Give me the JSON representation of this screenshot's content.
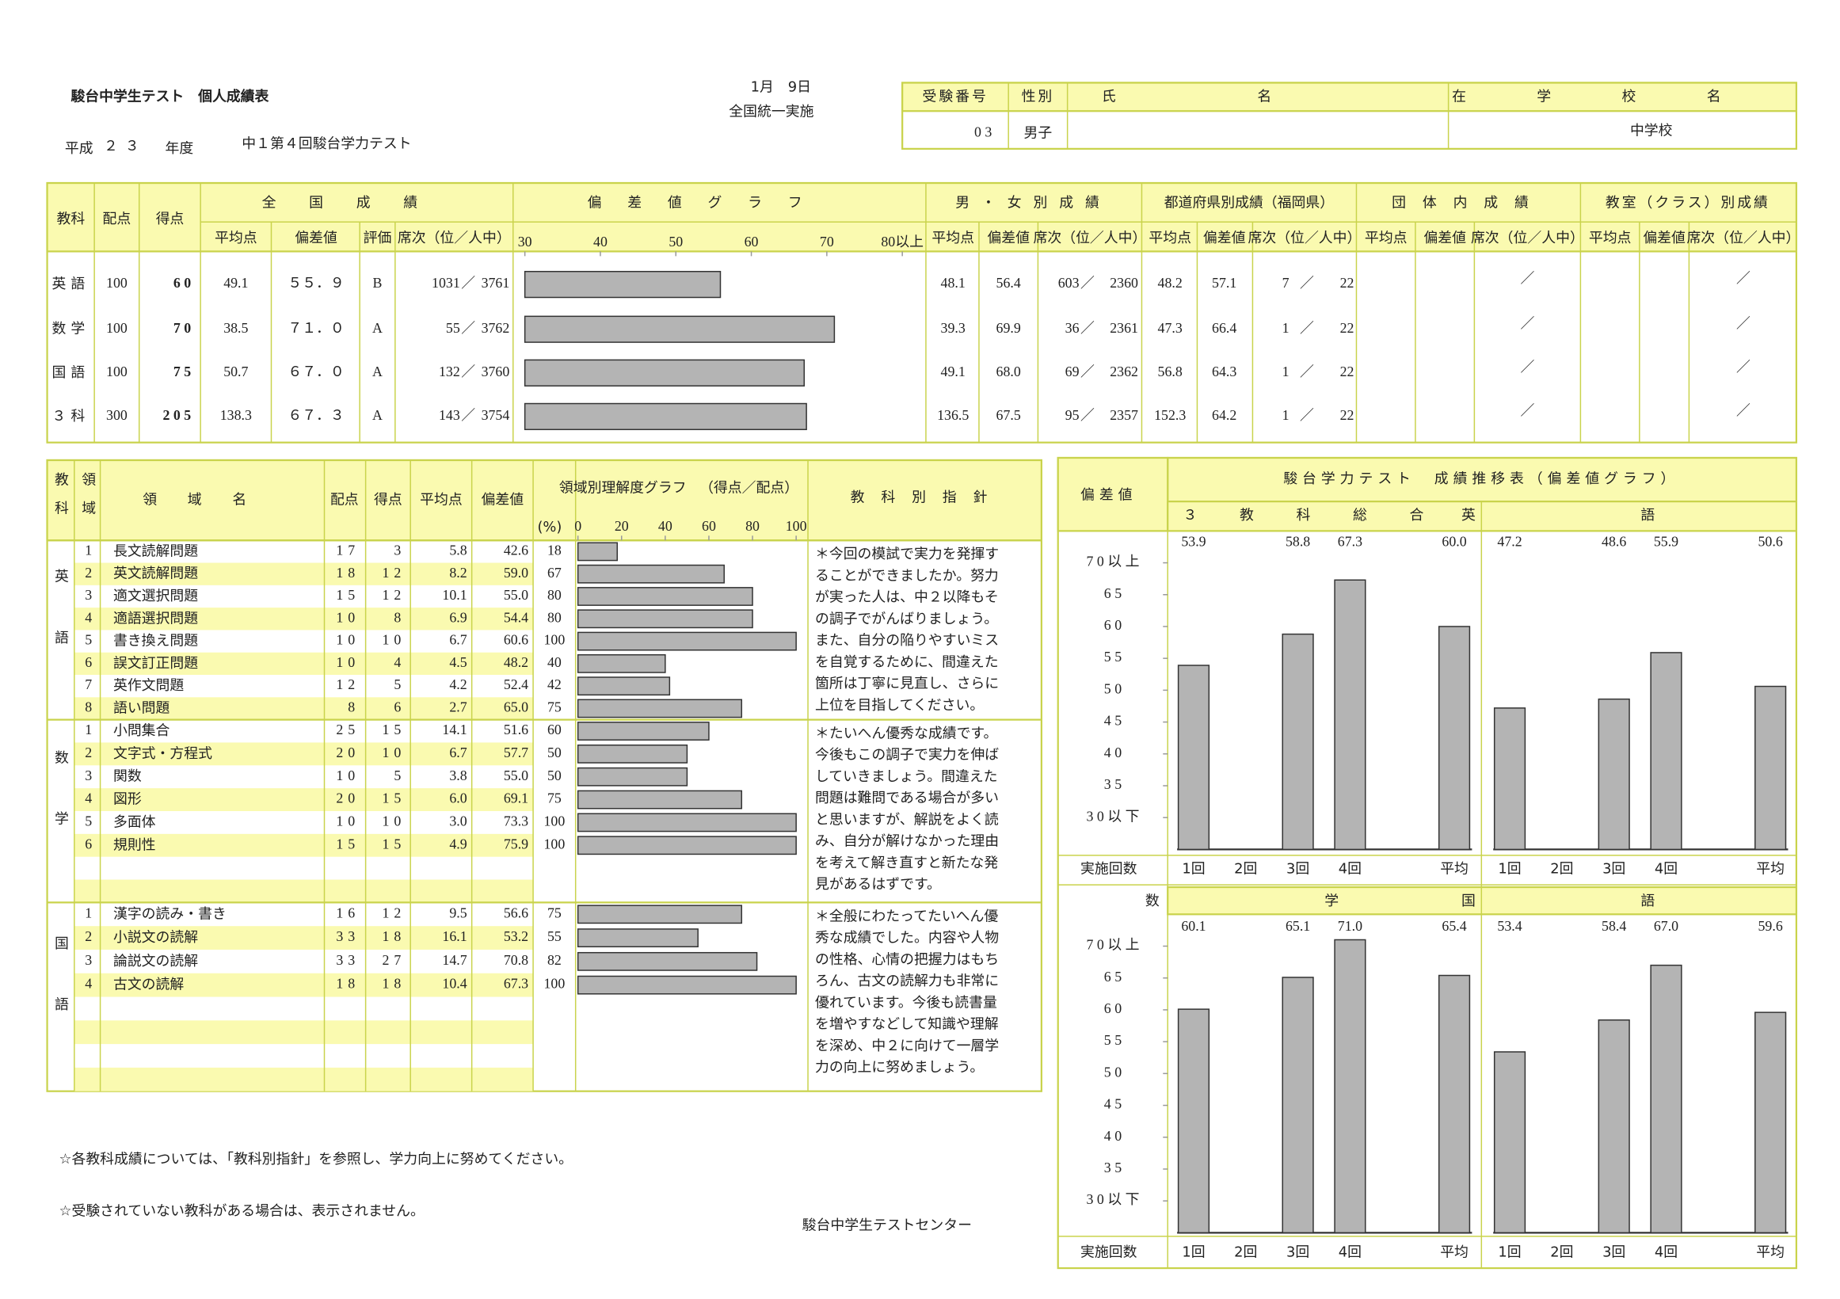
{
  "header": {
    "title": "駿台中学生テスト　個人成績表",
    "era": "平成",
    "year": "２３",
    "year_suffix": "年度",
    "test_name": "中１第４回駿台学力テスト",
    "date": "1月　9日",
    "exam_type": "全国統一実施"
  },
  "student": {
    "labels": [
      "受験番号",
      "性別",
      "氏名",
      "在学校名"
    ],
    "exam_number": "03",
    "gender": "男子",
    "school_suffix": "中学校"
  },
  "score_table": {
    "subject": "教科",
    "points": "配点",
    "score": "得点",
    "slash": "／",
    "graph_title": "偏差値グラフ",
    "graph_xlim": [
      30,
      80
    ],
    "graph_xticks": [
      30,
      40,
      50,
      60,
      70,
      {
        "value": 80,
        "label": "80以上"
      }
    ],
    "groups": [
      {
        "title": "全国成績",
        "cols": [
          "平均点",
          "偏差値",
          "評価",
          "席次（位／人中）"
        ]
      },
      {
        "title": "男・女別成績",
        "cols": [
          "平均点",
          "偏差値",
          "席次（位／人中）"
        ]
      },
      {
        "title": "都道府県別成績（福岡県）",
        "cols": [
          "平均点",
          "偏差値",
          "席次（位／人中）"
        ]
      },
      {
        "title": "団体内成績",
        "cols": [
          "平均点",
          "偏差値",
          "席次（位／人中）"
        ]
      },
      {
        "title": "教室（クラス）別成績",
        "cols": [
          "平均点",
          "偏差値",
          "席次（位／人中）"
        ]
      }
    ],
    "rows": [
      {
        "subject": "英語",
        "points": "100",
        "score": "60",
        "national": {
          "avg": "49.1",
          "deviation": 55.9,
          "deviation_label": "５５．９",
          "grade": "B",
          "rank": "1031",
          "total": "3761"
        },
        "gender": {
          "avg": "48.1",
          "deviation": "56.4",
          "rank": "603",
          "total": "2360"
        },
        "pref": {
          "avg": "48.2",
          "deviation": "57.1",
          "rank": "7",
          "total": "22"
        }
      },
      {
        "subject": "数学",
        "points": "100",
        "score": "70",
        "national": {
          "avg": "38.5",
          "deviation": 71.0,
          "deviation_label": "７１．０",
          "grade": "A",
          "rank": "55",
          "total": "3762"
        },
        "gender": {
          "avg": "39.3",
          "deviation": "69.9",
          "rank": "36",
          "total": "2361"
        },
        "pref": {
          "avg": "47.3",
          "deviation": "66.4",
          "rank": "1",
          "total": "22"
        }
      },
      {
        "subject": "国語",
        "points": "100",
        "score": "75",
        "national": {
          "avg": "50.7",
          "deviation": 67.0,
          "deviation_label": "６７．０",
          "grade": "A",
          "rank": "132",
          "total": "3760"
        },
        "gender": {
          "avg": "49.1",
          "deviation": "68.0",
          "rank": "69",
          "total": "2362"
        },
        "pref": {
          "avg": "56.8",
          "deviation": "64.3",
          "rank": "1",
          "total": "22"
        }
      },
      {
        "subject": "３科",
        "points": "300",
        "score": "205",
        "national": {
          "avg": "138.3",
          "deviation": 67.3,
          "deviation_label": "６７．３",
          "grade": "A",
          "rank": "143",
          "total": "3754"
        },
        "gender": {
          "avg": "136.5",
          "deviation": "67.5",
          "rank": "95",
          "total": "2357"
        },
        "pref": {
          "avg": "152.3",
          "deviation": "64.2",
          "rank": "1",
          "total": "22"
        }
      }
    ]
  },
  "domain_table": {
    "headers": {
      "subject": "教科",
      "area": "領域",
      "name": "領域名",
      "points": "配点",
      "score": "得点",
      "avg": "平均点",
      "deviation": "偏差値",
      "graph": "領域別理解度グラフ",
      "graph_note": "（得点／配点）",
      "guidance": "教科別指針",
      "unit": "(%)"
    },
    "xlim": [
      0,
      100
    ],
    "xticks": [
      0,
      20,
      40,
      60,
      80,
      100
    ],
    "sections": [
      {
        "subject": "英語",
        "items": [
          {
            "no": "1",
            "name": "長文読解問題",
            "points": "17",
            "score": "3",
            "avg": "5.8",
            "deviation": "42.6",
            "rate": 18
          },
          {
            "no": "2",
            "name": "英文読解問題",
            "points": "18",
            "score": "12",
            "avg": "8.2",
            "deviation": "59.0",
            "rate": 67
          },
          {
            "no": "3",
            "name": "適文選択問題",
            "points": "15",
            "score": "12",
            "avg": "10.1",
            "deviation": "55.0",
            "rate": 80
          },
          {
            "no": "4",
            "name": "適語選択問題",
            "points": "10",
            "score": "8",
            "avg": "6.9",
            "deviation": "54.4",
            "rate": 80
          },
          {
            "no": "5",
            "name": "書き換え問題",
            "points": "10",
            "score": "10",
            "avg": "6.7",
            "deviation": "60.6",
            "rate": 100
          },
          {
            "no": "6",
            "name": "誤文訂正問題",
            "points": "10",
            "score": "4",
            "avg": "4.5",
            "deviation": "48.2",
            "rate": 40
          },
          {
            "no": "7",
            "name": "英作文問題",
            "points": "12",
            "score": "5",
            "avg": "4.2",
            "deviation": "52.4",
            "rate": 42
          },
          {
            "no": "8",
            "name": "語い問題",
            "points": "8",
            "score": "6",
            "avg": "2.7",
            "deviation": "65.0",
            "rate": 75
          }
        ],
        "guidance": [
          "＊今回の模試で実力を発揮す",
          "ることができましたか。努力",
          "が実った人は、中２以降もそ",
          "の調子でがんばりましょう。",
          "また、自分の陥りやすいミス",
          "を自覚するために、間違えた",
          "箇所は丁寧に見直し、さらに",
          "上位を目指してください。"
        ]
      },
      {
        "subject": "数学",
        "items": [
          {
            "no": "1",
            "name": "小問集合",
            "points": "25",
            "score": "15",
            "avg": "14.1",
            "deviation": "51.6",
            "rate": 60
          },
          {
            "no": "2",
            "name": "文字式・方程式",
            "points": "20",
            "score": "10",
            "avg": "6.7",
            "deviation": "57.7",
            "rate": 50
          },
          {
            "no": "3",
            "name": "関数",
            "points": "10",
            "score": "5",
            "avg": "3.8",
            "deviation": "55.0",
            "rate": 50
          },
          {
            "no": "4",
            "name": "図形",
            "points": "20",
            "score": "15",
            "avg": "6.0",
            "deviation": "69.1",
            "rate": 75
          },
          {
            "no": "5",
            "name": "多面体",
            "points": "10",
            "score": "10",
            "avg": "3.0",
            "deviation": "73.3",
            "rate": 100
          },
          {
            "no": "6",
            "name": "規則性",
            "points": "15",
            "score": "15",
            "avg": "4.9",
            "deviation": "75.9",
            "rate": 100
          }
        ],
        "guidance": [
          "＊たいへん優秀な成績です。",
          "今後もこの調子で実力を伸ば",
          "していきましょう。間違えた",
          "問題は難問である場合が多い",
          "と思いますが、解説をよく読",
          "み、自分が解けなかった理由",
          "を考えて解き直すと新たな発",
          "見があるはずです。"
        ]
      },
      {
        "subject": "国語",
        "items": [
          {
            "no": "1",
            "name": "漢字の読み・書き",
            "points": "16",
            "score": "12",
            "avg": "9.5",
            "deviation": "56.6",
            "rate": 75
          },
          {
            "no": "2",
            "name": "小説文の読解",
            "points": "33",
            "score": "18",
            "avg": "16.1",
            "deviation": "53.2",
            "rate": 55
          },
          {
            "no": "3",
            "name": "論説文の読解",
            "points": "33",
            "score": "27",
            "avg": "14.7",
            "deviation": "70.8",
            "rate": 82
          },
          {
            "no": "4",
            "name": "古文の読解",
            "points": "18",
            "score": "18",
            "avg": "10.4",
            "deviation": "67.3",
            "rate": 100
          }
        ],
        "guidance": [
          "＊全般にわたってたいへん優",
          "秀な成績でした。内容や人物",
          "の性格、心情の把握力はもち",
          "ろん、古文の読解力も非常に",
          "優れています。今後も読書量",
          "を増やすなどして知識や理解",
          "を深め、中２に向けて一層学",
          "力の向上に努めましょう。"
        ]
      }
    ]
  },
  "trend": {
    "title": "駿台学力テスト　成績推移表（偏差値グラフ）",
    "y_label": "偏差値",
    "x_label": "実施回数",
    "ylim": [
      25,
      75
    ],
    "yticks": [
      {
        "value": 70,
        "label": "70以上"
      },
      65,
      60,
      55,
      50,
      45,
      40,
      35,
      {
        "value": 30,
        "label": "30以下"
      }
    ],
    "categories": [
      "1回",
      "2回",
      "3回",
      "4回",
      null,
      "平均"
    ],
    "panels": [
      {
        "name": "３教科総合",
        "values": [
          53.9,
          null,
          58.8,
          67.3,
          null,
          60.0
        ],
        "value_labels": [
          "53.9",
          null,
          "58.8",
          "67.3",
          null,
          "60.0"
        ]
      },
      {
        "name": "英語",
        "values": [
          47.2,
          null,
          48.6,
          55.9,
          null,
          50.6
        ],
        "value_labels": [
          "47.2",
          null,
          "48.6",
          "55.9",
          null,
          "50.6"
        ]
      },
      {
        "name": "数学",
        "values": [
          60.1,
          null,
          65.1,
          71.0,
          null,
          65.4
        ],
        "value_labels": [
          "60.1",
          null,
          "65.1",
          "71.0",
          null,
          "65.4"
        ]
      },
      {
        "name": "国語",
        "values": [
          53.4,
          null,
          58.4,
          67.0,
          null,
          59.6
        ],
        "value_labels": [
          "53.4",
          null,
          "58.4",
          "67.0",
          null,
          "59.6"
        ]
      }
    ]
  },
  "footer": {
    "notes": [
      "☆各教科成績については、「教科別指針」を参照し、学力向上に努めてください。",
      "☆受験されていない教科がある場合は、表示されません。"
    ],
    "center": "駿台中学生テストセンター"
  }
}
